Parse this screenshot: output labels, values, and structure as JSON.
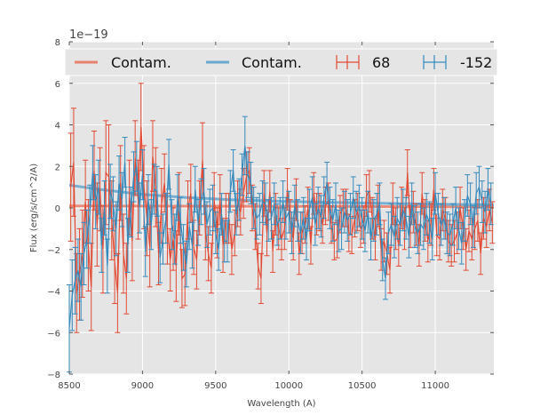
{
  "chart_data": {
    "type": "line",
    "title": "",
    "xlabel": "Wavelength (A)",
    "ylabel": "Flux (erg/s/cm^2/A)",
    "y_offset_label": "1e−19",
    "xlim": [
      8500,
      11400
    ],
    "ylim": [
      -8,
      8
    ],
    "y_scale": 1e-19,
    "x_ticks": [
      8500,
      9000,
      9500,
      10000,
      10500,
      11000
    ],
    "x_tick_labels": [
      "8500",
      "9000",
      "9500",
      "10000",
      "10500",
      "11000"
    ],
    "y_ticks": [
      -8,
      -6,
      -4,
      -2,
      0,
      2,
      4,
      6,
      8
    ],
    "y_tick_labels": [
      "−8",
      "−6",
      "−4",
      "−2",
      "0",
      "2",
      "4",
      "6",
      "8"
    ],
    "grid": true,
    "legend_position": "top",
    "colors": {
      "red": "#e24a33",
      "blue": "#348abd",
      "contam_red": "#e8816d",
      "contam_blue": "#6aa8cf",
      "background": "#e5e5e5",
      "grid": "#ffffff"
    },
    "series": [
      {
        "name": "Contam.",
        "kind": "line",
        "color_key": "contam_red",
        "x": [
          8500,
          11400
        ],
        "y": [
          0.1,
          0.05
        ]
      },
      {
        "name": "Contam.",
        "kind": "line",
        "color_key": "contam_blue",
        "x": [
          8500,
          8700,
          9000,
          9300,
          9600,
          9900,
          10200,
          10500,
          10800,
          11100,
          11400
        ],
        "y": [
          1.1,
          0.9,
          0.65,
          0.5,
          0.4,
          0.33,
          0.28,
          0.24,
          0.2,
          0.17,
          0.15
        ]
      },
      {
        "name": "68",
        "kind": "errorbar",
        "color_key": "red",
        "x": [
          8510,
          8530,
          8550,
          8570,
          8590,
          8610,
          8630,
          8650,
          8670,
          8690,
          8710,
          8730,
          8750,
          8770,
          8790,
          8810,
          8830,
          8850,
          8870,
          8890,
          8910,
          8930,
          8950,
          8970,
          8990,
          9010,
          9030,
          9050,
          9070,
          9090,
          9110,
          9130,
          9150,
          9170,
          9190,
          9210,
          9230,
          9250,
          9270,
          9290,
          9310,
          9330,
          9350,
          9370,
          9390,
          9410,
          9430,
          9450,
          9470,
          9490,
          9510,
          9530,
          9550,
          9570,
          9590,
          9610,
          9630,
          9650,
          9670,
          9690,
          9710,
          9730,
          9750,
          9770,
          9790,
          9810,
          9830,
          9850,
          9870,
          9890,
          9910,
          9930,
          9950,
          9970,
          9990,
          10010,
          10030,
          10050,
          10070,
          10090,
          10110,
          10130,
          10150,
          10170,
          10190,
          10210,
          10230,
          10250,
          10270,
          10290,
          10310,
          10330,
          10350,
          10370,
          10390,
          10410,
          10430,
          10450,
          10470,
          10490,
          10510,
          10530,
          10550,
          10570,
          10590,
          10610,
          10630,
          10650,
          10670,
          10690,
          10710,
          10730,
          10750,
          10770,
          10790,
          10810,
          10830,
          10850,
          10870,
          10890,
          10910,
          10930,
          10950,
          10970,
          10990,
          11010,
          11030,
          11050,
          11070,
          11090,
          11110,
          11130,
          11150,
          11170,
          11190,
          11210,
          11230,
          11250,
          11270,
          11290,
          11310,
          11330,
          11350,
          11370,
          11390
        ],
        "y": [
          1.0,
          2.2,
          -4.1,
          -3.2,
          -2.2,
          0.3,
          -1.8,
          -3.8,
          1.8,
          -0.8,
          0.9,
          -2.0,
          1.7,
          1.5,
          -0.6,
          -2.6,
          -4.1,
          1.2,
          -2.2,
          -3.4,
          0.5,
          -1.6,
          2.4,
          0.4,
          3.9,
          1.0,
          -0.5,
          -1.9,
          2.5,
          1.0,
          -2.2,
          0.1,
          1.2,
          -1.0,
          -2.5,
          -1.5,
          -2.8,
          0.2,
          -3.4,
          -3.2,
          -0.1,
          0.7,
          -1.9,
          -2.5,
          0.0,
          2.3,
          -1.2,
          -2.2,
          -2.9,
          0.4,
          -1.2,
          0.4,
          -1.8,
          -0.5,
          -0.5,
          -2.0,
          -1.2,
          0.2,
          -0.2,
          0.7,
          1.5,
          1.8,
          0.0,
          -0.9,
          -2.8,
          -3.4,
          0.7,
          -1.2,
          0.8,
          -2.1,
          -0.3,
          -1.0,
          -1.5,
          -1.0,
          0.9,
          -0.6,
          -1.5,
          0.4,
          -2.2,
          -1.2,
          -0.8,
          0.0,
          -1.8,
          0.7,
          -0.3,
          -0.2,
          -0.8,
          0.1,
          0.3,
          -0.8,
          -1.6,
          -1.5,
          -0.3,
          0.0,
          0.0,
          -1.2,
          -1.3,
          -0.5,
          -0.2,
          -1.0,
          -0.8,
          0.6,
          0.8,
          -0.5,
          -1.5,
          0.1,
          -2.0,
          -1.6,
          -2.2,
          -3.0,
          0.2,
          -1.0,
          -1.8,
          0.0,
          -1.0,
          1.7,
          -0.9,
          -0.2,
          -0.8,
          -1.8,
          0.7,
          -0.6,
          -1.6,
          -0.8,
          0.9,
          -1.3,
          -1.5,
          -0.1,
          -0.5,
          -1.6,
          -1.8,
          -1.6,
          -1.2,
          0.0,
          -1.0,
          -2.0,
          -1.1,
          -1.5,
          -1.0,
          -0.6,
          -2.2,
          -0.5,
          -0.9,
          -0.1,
          -0.7
        ],
        "err": [
          2.6,
          2.6,
          1.9,
          2.2,
          2.1,
          2.0,
          2.2,
          2.1,
          1.9,
          2.0,
          2.0,
          2.1,
          2.5,
          2.5,
          1.9,
          2.0,
          1.9,
          1.8,
          1.9,
          1.7,
          1.8,
          1.9,
          1.8,
          1.9,
          2.1,
          2.0,
          1.8,
          1.9,
          1.7,
          1.9,
          1.5,
          1.8,
          1.4,
          1.7,
          1.5,
          1.5,
          1.7,
          1.5,
          1.4,
          1.5,
          1.4,
          1.4,
          1.3,
          1.4,
          1.3,
          1.8,
          1.3,
          1.3,
          1.2,
          1.3,
          1.2,
          1.2,
          1.3,
          1.2,
          1.2,
          1.2,
          1.1,
          1.1,
          1.1,
          1.2,
          1.2,
          1.1,
          1.1,
          1.1,
          1.1,
          1.2,
          1.1,
          1.1,
          1.0,
          1.0,
          1.0,
          1.0,
          1.0,
          1.0,
          1.0,
          1.0,
          1.0,
          1.0,
          1.0,
          1.0,
          0.9,
          1.0,
          0.9,
          1.0,
          1.0,
          0.9,
          0.9,
          0.9,
          0.9,
          0.9,
          0.9,
          0.9,
          0.9,
          0.9,
          0.9,
          0.9,
          0.9,
          0.9,
          0.9,
          0.9,
          0.9,
          1.0,
          1.0,
          1.0,
          1.0,
          1.0,
          1.0,
          1.0,
          1.0,
          1.1,
          1.0,
          1.0,
          1.0,
          1.0,
          1.0,
          1.1,
          1.0,
          1.0,
          1.0,
          1.0,
          1.0,
          1.0,
          1.0,
          1.0,
          1.0,
          1.0,
          1.0,
          1.0,
          1.0,
          1.0,
          1.0,
          1.0,
          1.0,
          1.0,
          1.0,
          1.0,
          1.0,
          1.0,
          1.0,
          1.0,
          1.0,
          1.0,
          1.0,
          1.0,
          1.0
        ]
      },
      {
        "name": "-152",
        "kind": "errorbar",
        "color_key": "blue",
        "x": [
          8500,
          8520,
          8540,
          8560,
          8580,
          8600,
          8620,
          8640,
          8660,
          8680,
          8700,
          8720,
          8740,
          8760,
          8780,
          8800,
          8820,
          8840,
          8860,
          8880,
          8900,
          8920,
          8940,
          8960,
          8980,
          9000,
          9020,
          9040,
          9060,
          9080,
          9100,
          9120,
          9140,
          9160,
          9180,
          9200,
          9220,
          9240,
          9260,
          9280,
          9300,
          9320,
          9340,
          9360,
          9380,
          9400,
          9420,
          9440,
          9460,
          9480,
          9500,
          9520,
          9540,
          9560,
          9580,
          9600,
          9620,
          9640,
          9660,
          9680,
          9700,
          9720,
          9740,
          9760,
          9780,
          9800,
          9820,
          9840,
          9860,
          9880,
          9900,
          9920,
          9940,
          9960,
          9980,
          10000,
          10020,
          10040,
          10060,
          10080,
          10100,
          10120,
          10140,
          10160,
          10180,
          10200,
          10220,
          10240,
          10260,
          10280,
          10300,
          10320,
          10340,
          10360,
          10380,
          10400,
          10420,
          10440,
          10460,
          10480,
          10500,
          10520,
          10540,
          10560,
          10580,
          10600,
          10620,
          10640,
          10660,
          10680,
          10700,
          10720,
          10740,
          10760,
          10780,
          10800,
          10820,
          10840,
          10860,
          10880,
          10900,
          10920,
          10940,
          10960,
          10980,
          11000,
          11020,
          11040,
          11060,
          11080,
          11100,
          11120,
          11140,
          11160,
          11180,
          11200,
          11220,
          11240,
          11260,
          11280,
          11300,
          11320,
          11340,
          11360,
          11380
        ],
        "y": [
          -5.8,
          -4.2,
          -3.5,
          -3.0,
          -3.8,
          -2.2,
          -1.5,
          -0.3,
          1.7,
          0.3,
          1.0,
          -1.8,
          0.0,
          -2.8,
          0.8,
          0.2,
          -1.0,
          1.2,
          0.4,
          2.2,
          -1.8,
          -0.2,
          1.5,
          2.0,
          0.0,
          1.6,
          -2.1,
          0.4,
          -0.8,
          0.9,
          0.8,
          -2.4,
          -1.5,
          -0.5,
          2.1,
          -0.8,
          -1.5,
          0.5,
          -0.6,
          -1.9,
          -2.7,
          -0.9,
          -1.8,
          0.9,
          -0.7,
          0.3,
          0.8,
          -0.8,
          -0.2,
          0.0,
          -1.2,
          -2.0,
          -0.3,
          -1.6,
          -1.6,
          0.8,
          1.8,
          -0.3,
          0.4,
          1.6,
          3.0,
          1.6,
          1.2,
          0.0,
          -0.5,
          -0.3,
          0.3,
          0.2,
          -0.6,
          -0.5,
          0.2,
          -0.8,
          -0.5,
          0.3,
          -0.5,
          -0.2,
          -1.2,
          0.1,
          -0.6,
          -1.2,
          -0.5,
          -1.5,
          -0.1,
          0.5,
          -0.8,
          0.0,
          -0.4,
          0.5,
          1.2,
          0.0,
          -0.6,
          0.2,
          -1.1,
          -1.0,
          -0.2,
          -0.6,
          -0.3,
          0.5,
          -0.2,
          0.1,
          -0.5,
          -1.1,
          -0.2,
          -1.5,
          -0.6,
          -0.3,
          0.2,
          -2.5,
          -3.4,
          -1.2,
          -0.8,
          -1.4,
          -0.5,
          -0.8,
          -0.1,
          -0.5,
          -1.4,
          0.2,
          -0.9,
          -1.2,
          -0.8,
          -1.0,
          -0.3,
          -0.7,
          -1.5,
          0.7,
          -0.3,
          -0.8,
          -0.5,
          -1.2,
          -1.3,
          -0.8,
          0.0,
          -1.0,
          -1.7,
          -0.6,
          0.6,
          0.2,
          -0.9,
          0.7,
          1.0,
          0.3,
          -0.2,
          0.9,
          0.2
        ],
        "err": [
          2.1,
          1.7,
          1.6,
          1.5,
          1.6,
          1.5,
          1.4,
          1.4,
          1.3,
          1.3,
          1.3,
          1.3,
          1.3,
          1.3,
          1.3,
          1.3,
          1.3,
          1.3,
          1.3,
          1.2,
          1.3,
          1.2,
          1.2,
          1.2,
          1.2,
          1.2,
          1.2,
          1.2,
          1.2,
          1.2,
          1.2,
          1.2,
          1.2,
          1.2,
          1.2,
          1.2,
          1.2,
          1.1,
          1.1,
          1.1,
          1.1,
          1.1,
          1.1,
          1.1,
          1.1,
          1.1,
          1.1,
          1.1,
          1.1,
          1.1,
          1.0,
          1.0,
          1.0,
          1.0,
          1.0,
          1.0,
          1.0,
          1.0,
          1.0,
          1.0,
          1.4,
          1.1,
          1.0,
          1.0,
          1.0,
          1.0,
          1.0,
          1.0,
          1.0,
          1.0,
          1.0,
          1.0,
          1.0,
          1.0,
          1.0,
          1.0,
          1.0,
          1.0,
          1.0,
          1.0,
          1.0,
          1.0,
          1.0,
          1.0,
          1.0,
          1.0,
          1.0,
          1.0,
          1.0,
          1.0,
          1.0,
          1.0,
          1.0,
          1.0,
          1.0,
          1.0,
          1.0,
          1.0,
          1.0,
          1.0,
          1.0,
          1.0,
          1.0,
          1.0,
          1.0,
          1.0,
          1.0,
          1.0,
          1.0,
          1.0,
          1.0,
          1.0,
          1.0,
          1.0,
          1.0,
          1.0,
          1.0,
          1.0,
          1.0,
          1.0,
          1.0,
          1.0,
          1.0,
          1.0,
          1.0,
          1.0,
          1.0,
          1.0,
          1.0,
          1.0,
          1.0,
          1.0,
          1.0,
          1.0,
          1.0,
          1.0,
          1.0,
          1.0,
          1.0,
          1.0,
          1.0,
          1.0,
          1.0,
          1.0,
          1.0
        ]
      }
    ]
  }
}
